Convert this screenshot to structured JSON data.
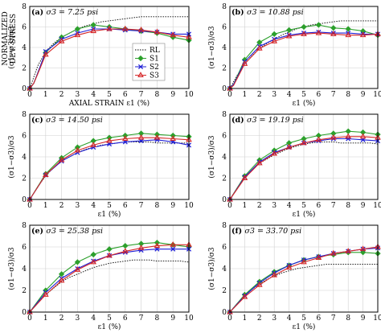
{
  "figure": {
    "ylabel_main_line1": "NORMALIZED",
    "ylabel_main_line2": "DEV. STRESS",
    "xlabel_main": "AXIAL STRAIN",
    "legend": [
      "RL",
      "S1",
      "S2",
      "S3"
    ]
  },
  "colors": {
    "RL": "#000000",
    "S1": "#2ca02c",
    "S2": "#1f1fd6",
    "S3": "#d62728"
  },
  "chart_data": [
    {
      "type": "line",
      "panel": "(a)",
      "title": "σ3 = 7.25 psi",
      "xlabel": "AXIAL STRAIN ε1 (%)",
      "ylabel": "(σ1−σ3)/σ3",
      "xlim": [
        0,
        10
      ],
      "ylim": [
        0,
        8
      ],
      "xticks": [
        0,
        1,
        2,
        3,
        4,
        5,
        6,
        7,
        8,
        9,
        10
      ],
      "yticks": [
        0,
        2,
        4,
        6,
        8
      ],
      "grid": true,
      "legend_position": "center-right",
      "series": [
        {
          "name": "RL",
          "x": [
            0,
            0.5,
            1,
            1.5,
            2,
            2.5,
            3,
            3.5,
            4,
            4.5,
            5,
            5.5,
            6,
            6.5,
            7,
            7.5,
            8,
            8.5,
            9,
            9.5,
            10
          ],
          "y": [
            0,
            2.2,
            3.6,
            4.4,
            5.0,
            5.4,
            5.8,
            6.1,
            6.3,
            6.5,
            6.6,
            6.7,
            6.8,
            6.9,
            7.0,
            7.0,
            7.0,
            7.0,
            7.0,
            7.0,
            7.0
          ]
        },
        {
          "name": "S1",
          "x": [
            0,
            0.25,
            0.5,
            1,
            2,
            3,
            4,
            5,
            6,
            7,
            8,
            9,
            10
          ],
          "y": [
            0,
            0.5,
            1.5,
            3.5,
            5.0,
            5.8,
            6.2,
            6.0,
            5.8,
            5.6,
            5.4,
            5.0,
            4.7
          ]
        },
        {
          "name": "S2",
          "x": [
            0,
            0.25,
            0.5,
            1,
            2,
            3,
            4,
            5,
            6,
            7,
            8,
            9,
            10
          ],
          "y": [
            0,
            0.5,
            1.5,
            3.6,
            4.8,
            5.4,
            5.8,
            5.8,
            5.7,
            5.6,
            5.5,
            5.3,
            5.3
          ]
        },
        {
          "name": "S3",
          "x": [
            0,
            0.25,
            0.5,
            1,
            2,
            3,
            4,
            5,
            6,
            7,
            8,
            9,
            10
          ],
          "y": [
            0,
            0.5,
            1.4,
            3.3,
            4.6,
            5.2,
            5.6,
            5.8,
            5.8,
            5.7,
            5.5,
            5.2,
            5.0
          ]
        }
      ]
    },
    {
      "type": "line",
      "panel": "(b)",
      "title": "σ3 = 10.88 psi",
      "xlabel": "ε1 (%)",
      "ylabel": "(σ1−σ3)/σ3",
      "xlim": [
        0,
        10
      ],
      "ylim": [
        0,
        8
      ],
      "xticks": [
        0,
        1,
        2,
        3,
        4,
        5,
        6,
        7,
        8,
        9,
        10
      ],
      "yticks": [
        0,
        2,
        4,
        6,
        8
      ],
      "grid": true,
      "series": [
        {
          "name": "RL",
          "x": [
            0,
            0.5,
            1,
            1.5,
            2,
            2.5,
            3,
            3.5,
            4,
            4.5,
            5,
            5.5,
            6,
            6.5,
            7,
            7.5,
            8,
            8.5,
            9,
            9.5,
            10
          ],
          "y": [
            0,
            1.3,
            2.4,
            3.2,
            3.9,
            4.4,
            4.8,
            5.2,
            5.5,
            5.8,
            6.0,
            6.2,
            6.3,
            6.4,
            6.5,
            6.6,
            6.6,
            6.6,
            6.6,
            6.6,
            6.6
          ]
        },
        {
          "name": "S1",
          "x": [
            0,
            0.25,
            0.5,
            1,
            2,
            3,
            4,
            5,
            6,
            7,
            8,
            9,
            10
          ],
          "y": [
            0,
            0.4,
            1.2,
            2.8,
            4.5,
            5.3,
            5.7,
            6.0,
            6.2,
            5.9,
            5.8,
            5.6,
            5.2
          ]
        },
        {
          "name": "S2",
          "x": [
            0,
            0.25,
            0.5,
            1,
            2,
            3,
            4,
            5,
            6,
            7,
            8,
            9,
            10
          ],
          "y": [
            0,
            0.4,
            1.1,
            2.6,
            4.1,
            4.8,
            5.2,
            5.4,
            5.5,
            5.4,
            5.4,
            5.3,
            5.3
          ]
        },
        {
          "name": "S3",
          "x": [
            0,
            0.25,
            0.5,
            1,
            2,
            3,
            4,
            5,
            6,
            7,
            8,
            9,
            10
          ],
          "y": [
            0,
            0.3,
            1.0,
            2.4,
            3.9,
            4.6,
            5.1,
            5.3,
            5.4,
            5.3,
            5.2,
            5.2,
            5.3
          ]
        }
      ]
    },
    {
      "type": "line",
      "panel": "(c)",
      "title": "σ3 = 14.50 psi",
      "xlabel": "ε1 (%)",
      "ylabel": "(σ1−σ3)/σ3",
      "xlim": [
        0,
        10
      ],
      "ylim": [
        0,
        8
      ],
      "xticks": [
        0,
        1,
        2,
        3,
        4,
        5,
        6,
        7,
        8,
        9,
        10
      ],
      "yticks": [
        0,
        2,
        4,
        6,
        8
      ],
      "grid": true,
      "series": [
        {
          "name": "RL",
          "x": [
            0,
            0.5,
            1,
            1.5,
            2,
            2.5,
            3,
            3.5,
            4,
            4.5,
            5,
            5.5,
            6,
            6.5,
            7,
            7.5,
            8,
            8.5,
            9,
            9.5,
            10
          ],
          "y": [
            0,
            1.2,
            2.2,
            3.0,
            3.6,
            4.0,
            4.4,
            4.7,
            4.9,
            5.1,
            5.2,
            5.3,
            5.4,
            5.4,
            5.4,
            5.4,
            5.3,
            5.3,
            5.3,
            5.3,
            5.3
          ]
        },
        {
          "name": "S1",
          "x": [
            0,
            1,
            2,
            3,
            4,
            5,
            6,
            7,
            8,
            9,
            10
          ],
          "y": [
            0,
            2.4,
            3.9,
            4.9,
            5.5,
            5.8,
            6.0,
            6.2,
            6.1,
            6.0,
            5.9
          ]
        },
        {
          "name": "S2",
          "x": [
            0,
            1,
            2,
            3,
            4,
            5,
            6,
            7,
            8,
            9,
            10
          ],
          "y": [
            0,
            2.3,
            3.6,
            4.4,
            4.9,
            5.2,
            5.4,
            5.5,
            5.6,
            5.4,
            5.1
          ]
        },
        {
          "name": "S3",
          "x": [
            0,
            1,
            2,
            3,
            4,
            5,
            6,
            7,
            8,
            9,
            10
          ],
          "y": [
            0,
            2.3,
            3.7,
            4.6,
            5.1,
            5.5,
            5.7,
            5.8,
            5.8,
            5.7,
            5.6
          ]
        }
      ]
    },
    {
      "type": "line",
      "panel": "(d)",
      "title": "σ3 = 19.19 psi",
      "xlabel": "ε1 (%)",
      "ylabel": "(σ1−σ3)/σ3",
      "xlim": [
        0,
        10
      ],
      "ylim": [
        0,
        8
      ],
      "xticks": [
        0,
        1,
        2,
        3,
        4,
        5,
        6,
        7,
        8,
        9,
        10
      ],
      "yticks": [
        0,
        2,
        4,
        6,
        8
      ],
      "grid": true,
      "series": [
        {
          "name": "RL",
          "x": [
            0,
            0.5,
            1,
            1.5,
            2,
            2.5,
            3,
            3.5,
            4,
            4.5,
            5,
            5.5,
            6,
            6.5,
            7,
            7.5,
            8,
            8.5,
            9,
            9.5,
            10
          ],
          "y": [
            0,
            1.1,
            2.0,
            2.8,
            3.4,
            3.8,
            4.2,
            4.5,
            4.8,
            5.0,
            5.2,
            5.3,
            5.4,
            5.4,
            5.4,
            5.3,
            5.3,
            5.3,
            5.3,
            5.3,
            5.2
          ]
        },
        {
          "name": "S1",
          "x": [
            0,
            1,
            2,
            3,
            4,
            5,
            6,
            7,
            8,
            9,
            10
          ],
          "y": [
            0,
            2.2,
            3.7,
            4.6,
            5.3,
            5.7,
            6.0,
            6.2,
            6.4,
            6.3,
            6.1
          ]
        },
        {
          "name": "S2",
          "x": [
            0,
            1,
            2,
            3,
            4,
            5,
            6,
            7,
            8,
            9,
            10
          ],
          "y": [
            0,
            2.1,
            3.5,
            4.4,
            4.9,
            5.3,
            5.5,
            5.7,
            5.7,
            5.6,
            5.5
          ]
        },
        {
          "name": "S3",
          "x": [
            0,
            1,
            2,
            3,
            4,
            5,
            6,
            7,
            8,
            9,
            10
          ],
          "y": [
            0,
            2.0,
            3.4,
            4.3,
            4.9,
            5.3,
            5.6,
            5.8,
            5.9,
            5.9,
            5.8
          ]
        }
      ]
    },
    {
      "type": "line",
      "panel": "(e)",
      "title": "σ3 = 25.38 psi",
      "xlabel": "ε1 (%)",
      "ylabel": "(σ1−σ3)/σ3",
      "xlim": [
        0,
        10
      ],
      "ylim": [
        0,
        8
      ],
      "xticks": [
        0,
        1,
        2,
        3,
        4,
        5,
        6,
        7,
        8,
        9,
        10
      ],
      "yticks": [
        0,
        2,
        4,
        6,
        8
      ],
      "grid": true,
      "series": [
        {
          "name": "RL",
          "x": [
            0,
            0.5,
            1,
            1.5,
            2,
            2.5,
            3,
            3.5,
            4,
            4.5,
            5,
            5.5,
            6,
            6.5,
            7,
            7.5,
            8,
            8.5,
            9,
            9.5,
            10
          ],
          "y": [
            0,
            0.9,
            1.6,
            2.2,
            2.8,
            3.2,
            3.5,
            3.8,
            4.1,
            4.3,
            4.5,
            4.6,
            4.7,
            4.8,
            4.8,
            4.8,
            4.7,
            4.7,
            4.7,
            4.7,
            4.6
          ]
        },
        {
          "name": "S1",
          "x": [
            0,
            1,
            2,
            3,
            4,
            5,
            6,
            7,
            8,
            9,
            10
          ],
          "y": [
            0,
            2.0,
            3.5,
            4.6,
            5.3,
            5.8,
            6.1,
            6.3,
            6.4,
            6.2,
            6.0
          ]
        },
        {
          "name": "S2",
          "x": [
            0,
            1,
            2,
            3,
            4,
            5,
            6,
            7,
            8,
            9,
            10
          ],
          "y": [
            0,
            1.8,
            3.1,
            4.0,
            4.7,
            5.2,
            5.5,
            5.7,
            5.8,
            5.8,
            5.8
          ]
        },
        {
          "name": "S3",
          "x": [
            0,
            1,
            2,
            3,
            4,
            5,
            6,
            7,
            8,
            9,
            10
          ],
          "y": [
            0,
            1.6,
            2.9,
            3.9,
            4.6,
            5.2,
            5.6,
            5.9,
            6.1,
            6.2,
            6.2
          ]
        }
      ]
    },
    {
      "type": "line",
      "panel": "(f)",
      "title": "σ3 = 33.70 psi",
      "xlabel": "ε1 (%)",
      "ylabel": "(σ1−σ3)/σ3",
      "xlim": [
        0,
        10
      ],
      "ylim": [
        0,
        8
      ],
      "xticks": [
        0,
        1,
        2,
        3,
        4,
        5,
        6,
        7,
        8,
        9,
        10
      ],
      "yticks": [
        0,
        2,
        4,
        6,
        8
      ],
      "grid": true,
      "series": [
        {
          "name": "RL",
          "x": [
            0,
            0.5,
            1,
            1.5,
            2,
            2.5,
            3,
            3.5,
            4,
            4.5,
            5,
            5.5,
            6,
            6.5,
            7,
            7.5,
            8,
            8.5,
            9,
            9.5,
            10
          ],
          "y": [
            0,
            0.8,
            1.5,
            2.1,
            2.6,
            3.0,
            3.3,
            3.6,
            3.8,
            4.0,
            4.1,
            4.2,
            4.3,
            4.4,
            4.4,
            4.4,
            4.4,
            4.4,
            4.4,
            4.4,
            4.4
          ]
        },
        {
          "name": "S1",
          "x": [
            0,
            1,
            2,
            3,
            4,
            5,
            6,
            7,
            8,
            9,
            10
          ],
          "y": [
            0,
            1.6,
            2.8,
            3.7,
            4.3,
            4.8,
            5.1,
            5.3,
            5.5,
            5.5,
            5.4
          ]
        },
        {
          "name": "S2",
          "x": [
            0,
            1,
            2,
            3,
            4,
            5,
            6,
            7,
            8,
            9,
            10
          ],
          "y": [
            0,
            1.5,
            2.7,
            3.6,
            4.3,
            4.8,
            5.1,
            5.4,
            5.6,
            5.8,
            5.9
          ]
        },
        {
          "name": "S3",
          "x": [
            0,
            1,
            2,
            3,
            4,
            5,
            6,
            7,
            8,
            9,
            10
          ],
          "y": [
            0,
            1.4,
            2.5,
            3.4,
            4.1,
            4.6,
            5.0,
            5.4,
            5.6,
            5.8,
            6.0
          ]
        }
      ]
    }
  ]
}
